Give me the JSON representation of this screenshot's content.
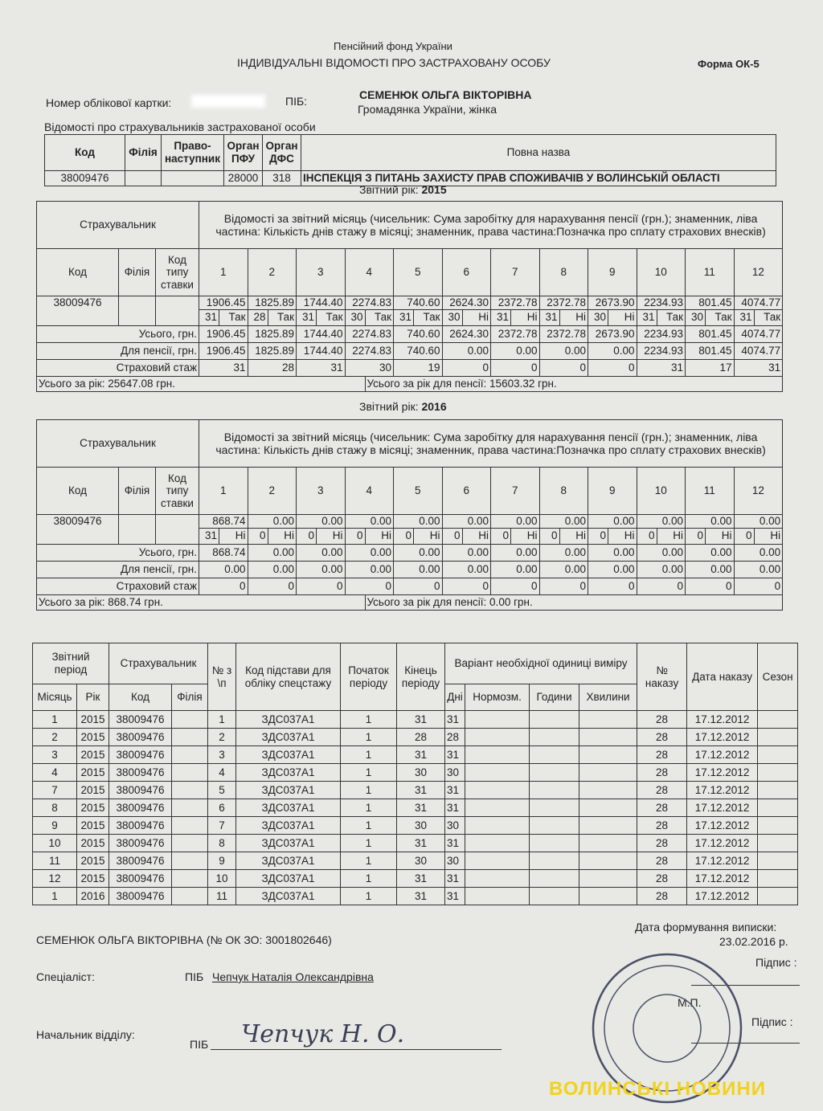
{
  "header": {
    "fund": "Пенсійний фонд України",
    "title": "ІНДИВІДУАЛЬНІ ВІДОМОСТІ ПРО ЗАСТРАХОВАНУ ОСОБУ",
    "form": "Форма ОК-5",
    "card_label": "Номер облікової картки:",
    "pib_label": "ПІБ:",
    "name": "СЕМЕНЮК ОЛЬГА ВІКТОРІВНА",
    "citizenship": "Громадянка України, жінка"
  },
  "insurers": {
    "caption": "Відомості про страхувальників застрахованої особи",
    "headers": [
      "Код",
      "Філія",
      "Право-наступник",
      "Орган ПФУ",
      "Орган ДФС",
      "Повна назва"
    ],
    "row": {
      "code": "38009476",
      "pfu": "28000",
      "dfs": "318",
      "name": "ІНСПЕКЦІЯ З ПИТАНЬ ЗАХИСТУ ПРАВ СПОЖИВАЧІВ У ВОЛИНСЬКІЙ ОБЛАСТІ"
    }
  },
  "years": [
    {
      "year_label": "Звітний рік:",
      "year": "2015",
      "insurer": "Страхувальник",
      "info": "Відомості за звітний місяць (чисельник: Сума заробітку для нарахування пенсії (грн.); знаменник, ліва частина: Кількість днів стажу в місяці; знаменник, права частина:Позначка про сплату страхових внесків)",
      "cols": [
        "Код",
        "Філія",
        "Код типу ставки"
      ],
      "months": [
        1,
        2,
        3,
        4,
        5,
        6,
        7,
        8,
        9,
        10,
        11,
        12
      ],
      "code": "38009476",
      "earnings": [
        "1906.45",
        "1825.89",
        "1744.40",
        "2274.83",
        "740.60",
        "2624.30",
        "2372.78",
        "2372.78",
        "2673.90",
        "2234.93",
        "801.45",
        "4074.77"
      ],
      "days": [
        31,
        28,
        31,
        30,
        31,
        30,
        31,
        31,
        30,
        31,
        30,
        31
      ],
      "flags": [
        "Так",
        "Так",
        "Так",
        "Так",
        "Так",
        "Ні",
        "Ні",
        "Ні",
        "Ні",
        "Так",
        "Так",
        "Так"
      ],
      "total_label": "Усього, грн.",
      "totals": [
        "1906.45",
        "1825.89",
        "1744.40",
        "2274.83",
        "740.60",
        "2624.30",
        "2372.78",
        "2372.78",
        "2673.90",
        "2234.93",
        "801.45",
        "4074.77"
      ],
      "pension_label": "Для пенсії, грн.",
      "pension": [
        "1906.45",
        "1825.89",
        "1744.40",
        "2274.83",
        "740.60",
        "0.00",
        "0.00",
        "0.00",
        "0.00",
        "2234.93",
        "801.45",
        "4074.77"
      ],
      "stazh_label": "Страховий стаж",
      "stazh": [
        31,
        28,
        31,
        30,
        19,
        0,
        0,
        0,
        0,
        31,
        17,
        31
      ],
      "year_total": "Усього за рік: 25647.08 грн.",
      "pension_total": "Усього за рік для пенсії: 15603.32 грн."
    },
    {
      "year_label": "Звітний рік:",
      "year": "2016",
      "insurer": "Страхувальник",
      "info": "Відомості за звітний місяць (чисельник: Сума заробітку для нарахування пенсії (грн.); знаменник, ліва частина: Кількість днів стажу в місяці; знаменник, права частина:Позначка про сплату страхових внесків)",
      "cols": [
        "Код",
        "Філія",
        "Код типу ставки"
      ],
      "months": [
        1,
        2,
        3,
        4,
        5,
        6,
        7,
        8,
        9,
        10,
        11,
        12
      ],
      "code": "38009476",
      "earnings": [
        "868.74",
        "0.00",
        "0.00",
        "0.00",
        "0.00",
        "0.00",
        "0.00",
        "0.00",
        "0.00",
        "0.00",
        "0.00",
        "0.00"
      ],
      "days": [
        31,
        0,
        0,
        0,
        0,
        0,
        0,
        0,
        0,
        0,
        0,
        0
      ],
      "flags": [
        "Ні",
        "Ні",
        "Ні",
        "Ні",
        "Ні",
        "Ні",
        "Ні",
        "Ні",
        "Ні",
        "Ні",
        "Ні",
        "Ні"
      ],
      "total_label": "Усього, грн.",
      "totals": [
        "868.74",
        "0.00",
        "0.00",
        "0.00",
        "0.00",
        "0.00",
        "0.00",
        "0.00",
        "0.00",
        "0.00",
        "0.00",
        "0.00"
      ],
      "pension_label": "Для пенсії, грн.",
      "pension": [
        "0.00",
        "0.00",
        "0.00",
        "0.00",
        "0.00",
        "0.00",
        "0.00",
        "0.00",
        "0.00",
        "0.00",
        "0.00",
        "0.00"
      ],
      "stazh_label": "Страховий стаж",
      "stazh": [
        0,
        0,
        0,
        0,
        0,
        0,
        0,
        0,
        0,
        0,
        0,
        0
      ],
      "year_total": "Усього за рік: 868.74 грн.",
      "pension_total": "Усього за рік для пенсії: 0.00 грн."
    }
  ],
  "periods": {
    "top": [
      "Звітний період",
      "Страхувальник",
      "№ з \\п",
      "Код підстави для обліку спецстажу",
      "Початок періоду",
      "Кінець періоду",
      "Варіант необхідної одиниці виміру",
      "№ наказу",
      "Дата наказу",
      "Сезон"
    ],
    "sub": [
      "Місяць",
      "Рік",
      "Код",
      "Філія",
      "Дні",
      "Нормозм.",
      "Години",
      "Хвилини"
    ],
    "rows": [
      {
        "month": 1,
        "year": 2015,
        "code": "38009476",
        "n": 1,
        "basis": "ЗДС037А1",
        "start": 1,
        "end": 31,
        "days": 31,
        "order": 28,
        "date": "17.12.2012"
      },
      {
        "month": 2,
        "year": 2015,
        "code": "38009476",
        "n": 2,
        "basis": "ЗДС037А1",
        "start": 1,
        "end": 28,
        "days": 28,
        "order": 28,
        "date": "17.12.2012"
      },
      {
        "month": 3,
        "year": 2015,
        "code": "38009476",
        "n": 3,
        "basis": "ЗДС037А1",
        "start": 1,
        "end": 31,
        "days": 31,
        "order": 28,
        "date": "17.12.2012"
      },
      {
        "month": 4,
        "year": 2015,
        "code": "38009476",
        "n": 4,
        "basis": "ЗДС037А1",
        "start": 1,
        "end": 30,
        "days": 30,
        "order": 28,
        "date": "17.12.2012"
      },
      {
        "month": 7,
        "year": 2015,
        "code": "38009476",
        "n": 5,
        "basis": "ЗДС037А1",
        "start": 1,
        "end": 31,
        "days": 31,
        "order": 28,
        "date": "17.12.2012"
      },
      {
        "month": 8,
        "year": 2015,
        "code": "38009476",
        "n": 6,
        "basis": "ЗДС037А1",
        "start": 1,
        "end": 31,
        "days": 31,
        "order": 28,
        "date": "17.12.2012"
      },
      {
        "month": 9,
        "year": 2015,
        "code": "38009476",
        "n": 7,
        "basis": "ЗДС037А1",
        "start": 1,
        "end": 30,
        "days": 30,
        "order": 28,
        "date": "17.12.2012"
      },
      {
        "month": 10,
        "year": 2015,
        "code": "38009476",
        "n": 8,
        "basis": "ЗДС037А1",
        "start": 1,
        "end": 31,
        "days": 31,
        "order": 28,
        "date": "17.12.2012"
      },
      {
        "month": 11,
        "year": 2015,
        "code": "38009476",
        "n": 9,
        "basis": "ЗДС037А1",
        "start": 1,
        "end": 30,
        "days": 30,
        "order": 28,
        "date": "17.12.2012"
      },
      {
        "month": 12,
        "year": 2015,
        "code": "38009476",
        "n": 10,
        "basis": "ЗДС037А1",
        "start": 1,
        "end": 31,
        "days": 31,
        "order": 28,
        "date": "17.12.2012"
      },
      {
        "month": 1,
        "year": 2016,
        "code": "38009476",
        "n": 11,
        "basis": "ЗДС037А1",
        "start": 1,
        "end": 31,
        "days": 31,
        "order": 28,
        "date": "17.12.2012"
      }
    ]
  },
  "footer": {
    "person": "СЕМЕНЮК ОЛЬГА ВІКТОРІВНА (№ ОК ЗО: 3001802646)",
    "date_label": "Дата формування виписки:",
    "date": "23.02.2016 р.",
    "sign1": "Підпис :",
    "specialist": "Спеціаліст:",
    "pib1": "ПІБ",
    "specialist_name": "Чепчук Наталія Олександрівна",
    "mp": "М.П.",
    "sign2": "Підпис :",
    "head": "Начальник відділу:",
    "pib2": "ПІБ",
    "signature": "Чепчук Н. О."
  },
  "watermark": "ВОЛИНСЬКІ НОВИНИ"
}
